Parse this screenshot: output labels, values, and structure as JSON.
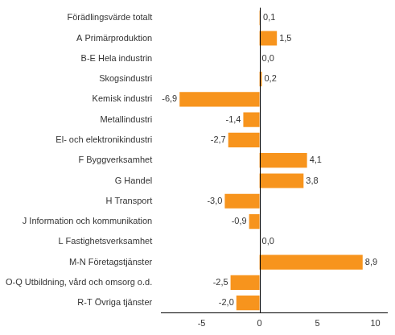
{
  "chart_data": {
    "type": "bar",
    "orientation": "horizontal",
    "categories": [
      "Förädlingsvärde totalt",
      "A Primärproduktion",
      "B-E Hela industrin",
      "Skogsindustri",
      "Kemisk industri",
      "Metallindustri",
      "El- och elektronikindustri",
      "F Byggverksamhet",
      "G Handel",
      "H Transport",
      "J Information och kommunikation",
      "L Fastighetsverksamhet",
      "M-N Företagstjänster",
      "O-Q Utbildning, vård och omsorg o.d.",
      "R-T Övriga tjänster"
    ],
    "values": [
      0.1,
      1.5,
      0.0,
      0.2,
      -6.9,
      -1.4,
      -2.7,
      4.1,
      3.8,
      -3.0,
      -0.9,
      0.0,
      8.9,
      -2.5,
      -2.0
    ],
    "value_labels": [
      "0,1",
      "1,5",
      "0,0",
      "0,2",
      "-6,9",
      "-1,4",
      "-2,7",
      "4,1",
      "3,8",
      "-3,0",
      "-0,9",
      "0,0",
      "8,9",
      "-2,5",
      "-2,0"
    ],
    "data_labels": true,
    "color": "#f7941d",
    "xlim": [
      -8.5,
      11
    ],
    "xticks": [
      -5,
      0,
      5,
      10
    ],
    "grid": false
  }
}
